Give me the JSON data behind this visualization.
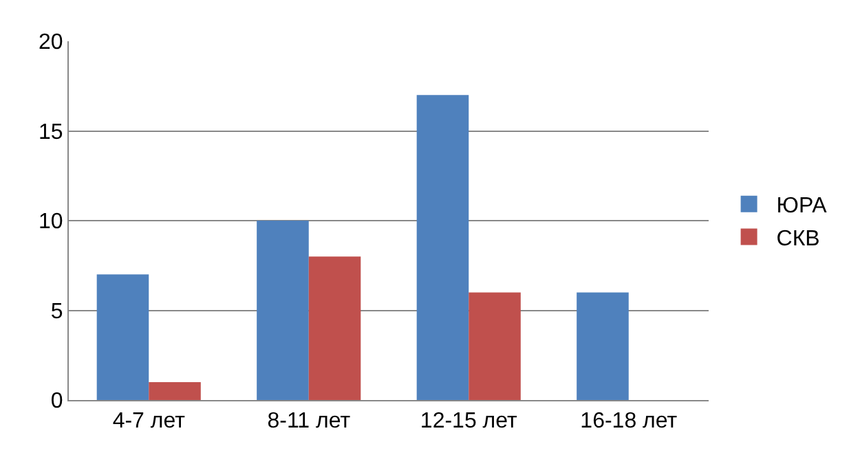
{
  "chart_data": {
    "type": "bar",
    "categories": [
      "4-7 лет",
      "8-11 лет",
      "12-15 лет",
      "16-18 лет"
    ],
    "series": [
      {
        "name": "ЮРА",
        "color": "#4f81bd",
        "values": [
          7,
          10,
          17,
          6
        ]
      },
      {
        "name": "СКВ",
        "color": "#c0504d",
        "values": [
          1,
          8,
          6,
          0
        ]
      }
    ],
    "ylim": [
      0,
      20
    ],
    "yticks": [
      0,
      5,
      10,
      15,
      20
    ],
    "grid": "y",
    "legend": "right"
  }
}
